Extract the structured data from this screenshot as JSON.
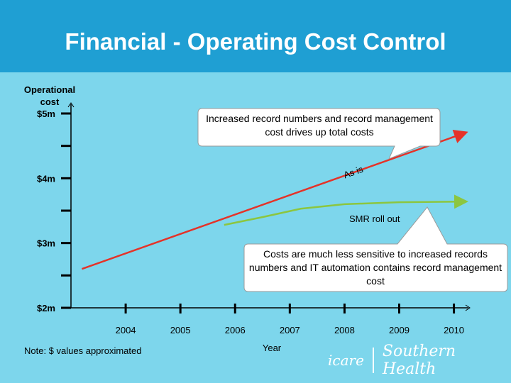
{
  "slide": {
    "title": "Financial - Operating Cost Control",
    "footnote": "Note: $ values approximated",
    "logo_left": "icare",
    "logo_right": "Southern Health"
  },
  "colors": {
    "background": "#7dd6ec",
    "title_bar": "#1f9fd3",
    "as_is_line": "#e53228",
    "smr_line": "#8cc63f",
    "callout_fill": "#ffffff"
  },
  "chart_data": {
    "type": "line",
    "title": "",
    "ylabel": "Operational cost",
    "xlabel": "Year",
    "y_ticks": [
      {
        "value": 5,
        "label": "$5m"
      },
      {
        "value": 4,
        "label": "$4m"
      },
      {
        "value": 3,
        "label": "$3m"
      },
      {
        "value": 2,
        "label": "$2m"
      }
    ],
    "ylim": [
      2,
      5
    ],
    "categories": [
      "2004",
      "2005",
      "2006",
      "2007",
      "2008",
      "2009",
      "2010"
    ],
    "xlim": [
      2003,
      2010.2
    ],
    "series": [
      {
        "name": "As is",
        "color": "#e53228",
        "x": [
          2003.2,
          2010.2
        ],
        "y": [
          2.6,
          4.7
        ]
      },
      {
        "name": "SMR roll out",
        "color": "#8cc63f",
        "x": [
          2005.8,
          2006.5,
          2007.2,
          2008,
          2009,
          2010.2
        ],
        "y": [
          3.28,
          3.4,
          3.53,
          3.6,
          3.63,
          3.64
        ]
      }
    ],
    "annotations": [
      {
        "text": "Increased record numbers and record management cost drives up total costs"
      },
      {
        "text": "Costs are much less sensitive to increased records numbers and IT automation contains record management cost"
      }
    ]
  }
}
